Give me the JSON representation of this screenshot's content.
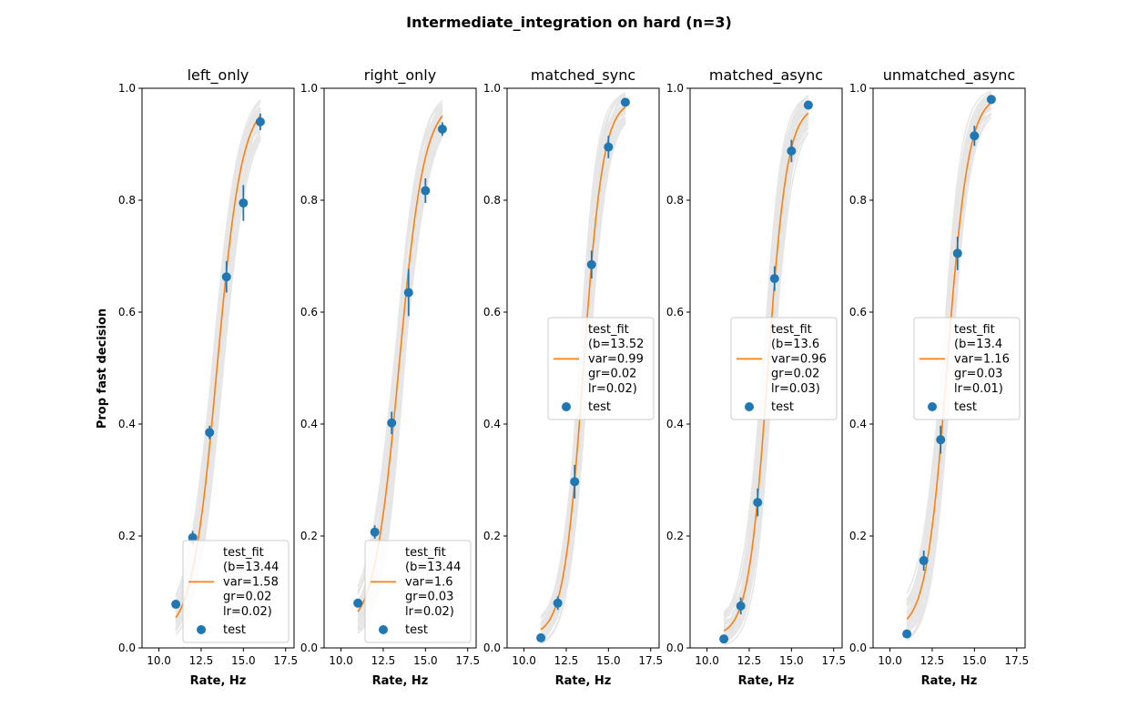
{
  "figure": {
    "suptitle": "Intermediate_integration on hard (n=3)",
    "ylabel": "Prop fast decision",
    "xlabel": "Rate, Hz"
  },
  "colors": {
    "fit": "#ff7f0e",
    "points": "#1f77b4",
    "bootstrap": "#d3d3d3"
  },
  "chart_data": [
    {
      "type": "scatter",
      "title": "left_only",
      "xlim": [
        9.0,
        18.0
      ],
      "ylim": [
        0.0,
        1.0
      ],
      "xticks": [
        "10.0",
        "12.5",
        "15.0",
        "17.5"
      ],
      "yticks": [
        "0.0",
        "0.2",
        "0.4",
        "0.6",
        "0.8",
        "1.0"
      ],
      "points": {
        "x": [
          11,
          12,
          13,
          14,
          15,
          16
        ],
        "y": [
          0.078,
          0.197,
          0.385,
          0.663,
          0.795,
          0.94
        ],
        "err": [
          0.005,
          0.012,
          0.012,
          0.028,
          0.032,
          0.015
        ]
      },
      "fit": {
        "b": 13.44,
        "var": 1.58,
        "gr": 0.02,
        "lr": 0.02
      },
      "legend": {
        "location": "lower right",
        "fit_label": [
          "test_fit",
          "(b=13.44",
          "var=1.58",
          "gr=0.02",
          "lr=0.02)"
        ],
        "points_label": "test"
      }
    },
    {
      "type": "scatter",
      "title": "right_only",
      "xlim": [
        9.0,
        18.0
      ],
      "ylim": [
        0.0,
        1.0
      ],
      "xticks": [
        "10.0",
        "12.5",
        "15.0",
        "17.5"
      ],
      "yticks": [
        "0.0",
        "0.2",
        "0.4",
        "0.6",
        "0.8",
        "1.0"
      ],
      "points": {
        "x": [
          11,
          12,
          13,
          14,
          15,
          16
        ],
        "y": [
          0.08,
          0.207,
          0.402,
          0.635,
          0.817,
          0.927
        ],
        "err": [
          0.005,
          0.012,
          0.02,
          0.042,
          0.022,
          0.012
        ]
      },
      "fit": {
        "b": 13.44,
        "var": 1.6,
        "gr": 0.03,
        "lr": 0.02
      },
      "legend": {
        "location": "lower right",
        "fit_label": [
          "test_fit",
          "(b=13.44",
          "var=1.6",
          "gr=0.03",
          "lr=0.02)"
        ],
        "points_label": "test"
      }
    },
    {
      "type": "scatter",
      "title": "matched_sync",
      "xlim": [
        9.0,
        18.0
      ],
      "ylim": [
        0.0,
        1.0
      ],
      "xticks": [
        "10.0",
        "12.5",
        "15.0",
        "17.5"
      ],
      "yticks": [
        "0.0",
        "0.2",
        "0.4",
        "0.6",
        "0.8",
        "1.0"
      ],
      "points": {
        "x": [
          11,
          12,
          13,
          14,
          15,
          16
        ],
        "y": [
          0.018,
          0.08,
          0.297,
          0.685,
          0.895,
          0.975
        ],
        "err": [
          0.004,
          0.012,
          0.03,
          0.025,
          0.02,
          0.006
        ]
      },
      "fit": {
        "b": 13.52,
        "var": 0.99,
        "gr": 0.02,
        "lr": 0.02
      },
      "legend": {
        "location": "center right",
        "fit_label": [
          "test_fit",
          "(b=13.52",
          "var=0.99",
          "gr=0.02",
          "lr=0.02)"
        ],
        "points_label": "test"
      }
    },
    {
      "type": "scatter",
      "title": "matched_async",
      "xlim": [
        9.0,
        18.0
      ],
      "ylim": [
        0.0,
        1.0
      ],
      "xticks": [
        "10.0",
        "12.5",
        "15.0",
        "17.5"
      ],
      "yticks": [
        "0.0",
        "0.2",
        "0.4",
        "0.6",
        "0.8",
        "1.0"
      ],
      "points": {
        "x": [
          11,
          12,
          13,
          14,
          15,
          16
        ],
        "y": [
          0.016,
          0.075,
          0.26,
          0.66,
          0.888,
          0.97
        ],
        "err": [
          0.004,
          0.015,
          0.025,
          0.022,
          0.02,
          0.006
        ]
      },
      "fit": {
        "b": 13.6,
        "var": 0.96,
        "gr": 0.02,
        "lr": 0.03
      },
      "legend": {
        "location": "center right",
        "fit_label": [
          "test_fit",
          "(b=13.6",
          "var=0.96",
          "gr=0.02",
          "lr=0.03)"
        ],
        "points_label": "test"
      }
    },
    {
      "type": "scatter",
      "title": "unmatched_async",
      "xlim": [
        9.0,
        18.0
      ],
      "ylim": [
        0.0,
        1.0
      ],
      "xticks": [
        "10.0",
        "12.5",
        "15.0",
        "17.5"
      ],
      "yticks": [
        "0.0",
        "0.2",
        "0.4",
        "0.6",
        "0.8",
        "1.0"
      ],
      "points": {
        "x": [
          11,
          12,
          13,
          14,
          15,
          16
        ],
        "y": [
          0.025,
          0.156,
          0.372,
          0.705,
          0.915,
          0.98
        ],
        "err": [
          0.004,
          0.018,
          0.025,
          0.03,
          0.018,
          0.006
        ]
      },
      "fit": {
        "b": 13.4,
        "var": 1.16,
        "gr": 0.03,
        "lr": 0.01
      },
      "legend": {
        "location": "center right",
        "fit_label": [
          "test_fit",
          "(b=13.4",
          "var=1.16",
          "gr=0.03",
          "lr=0.01)"
        ],
        "points_label": "test"
      }
    }
  ]
}
